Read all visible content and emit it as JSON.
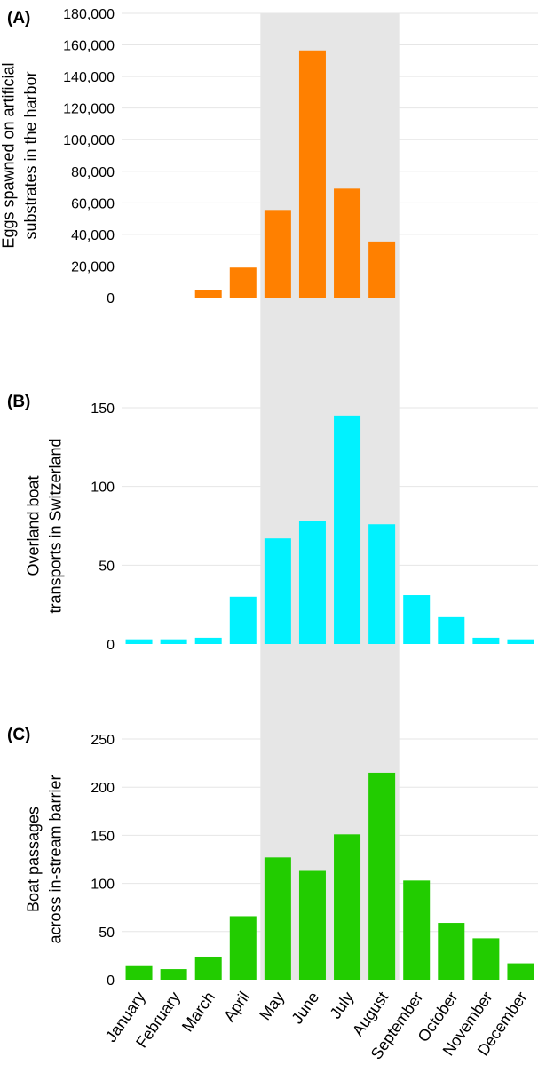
{
  "chart_data": [
    {
      "type": "bar",
      "panel_label": "(A)",
      "ylabel_lines": [
        "Eggs spawned on artificial",
        "substrates in the harbor"
      ],
      "categories": [
        "January",
        "February",
        "March",
        "April",
        "May",
        "June",
        "July",
        "August",
        "September",
        "October",
        "November",
        "December"
      ],
      "values": [
        0,
        0,
        4500,
        19000,
        55500,
        156500,
        69000,
        35500,
        0,
        0,
        0,
        0
      ],
      "ylim": [
        0,
        180000
      ],
      "yticks": [
        0,
        20000,
        40000,
        60000,
        80000,
        100000,
        120000,
        140000,
        160000,
        180000
      ],
      "ytick_labels": [
        "0",
        "20,000",
        "40,000",
        "60,000",
        "80,000",
        "100,000",
        "120,000",
        "140,000",
        "160,000",
        "180,000"
      ],
      "color": "#ff8000",
      "grid": true
    },
    {
      "type": "bar",
      "panel_label": "(B)",
      "ylabel_lines": [
        "Overland boat",
        "transports in Switzerland"
      ],
      "categories": [
        "January",
        "February",
        "March",
        "April",
        "May",
        "June",
        "July",
        "August",
        "September",
        "October",
        "November",
        "December"
      ],
      "values": [
        3,
        3,
        4,
        30,
        67,
        78,
        145,
        76,
        31,
        17,
        4,
        3
      ],
      "ylim": [
        0,
        150
      ],
      "yticks": [
        0,
        50,
        100,
        150
      ],
      "ytick_labels": [
        "0",
        "50",
        "100",
        "150"
      ],
      "color": "#00f2ff",
      "grid": true
    },
    {
      "type": "bar",
      "panel_label": "(C)",
      "ylabel_lines": [
        "Boat passages",
        "across in-stream barrier"
      ],
      "categories": [
        "January",
        "February",
        "March",
        "April",
        "May",
        "June",
        "July",
        "August",
        "September",
        "October",
        "November",
        "December"
      ],
      "values": [
        15,
        11,
        24,
        66,
        127,
        113,
        151,
        215,
        103,
        59,
        43,
        17
      ],
      "ylim": [
        0,
        250
      ],
      "yticks": [
        0,
        50,
        100,
        150,
        200,
        250
      ],
      "ytick_labels": [
        "0",
        "50",
        "100",
        "150",
        "200",
        "250"
      ],
      "color": "#22cc00",
      "grid": true
    }
  ],
  "highlight": {
    "start_month": "May",
    "end_month": "August",
    "color": "#e6e6e6"
  },
  "x_tick_labels": [
    "January",
    "February",
    "March",
    "April",
    "May",
    "June",
    "July",
    "August",
    "September",
    "October",
    "November",
    "December"
  ]
}
